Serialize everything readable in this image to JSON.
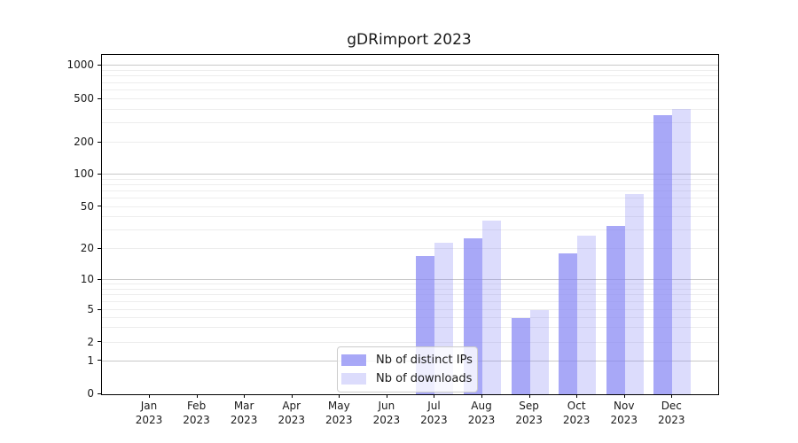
{
  "title": "gDRimport 2023",
  "chart_data": {
    "type": "bar",
    "title": "gDRimport 2023",
    "categories": [
      "Jan",
      "Feb",
      "Mar",
      "Apr",
      "May",
      "Jun",
      "Jul",
      "Aug",
      "Sep",
      "Oct",
      "Nov",
      "Dec"
    ],
    "category_year": "2023",
    "series": [
      {
        "name": "Nb of distinct IPs",
        "color": "#8383f4",
        "alpha": 0.7,
        "values": [
          0,
          0,
          0,
          0,
          0,
          0,
          17,
          25,
          4,
          18,
          33,
          360
        ]
      },
      {
        "name": "Nb of downloads",
        "color": "#8383f4",
        "alpha": 0.28,
        "values": [
          0,
          0,
          0,
          0,
          0,
          0,
          23,
          37,
          5,
          27,
          66,
          410
        ]
      }
    ],
    "yscale": "symlog",
    "yticks": [
      0,
      1,
      2,
      5,
      10,
      20,
      50,
      100,
      200,
      500,
      1000
    ],
    "ylim": [
      0,
      1300
    ],
    "grid": true,
    "legend_position": "lower center"
  }
}
